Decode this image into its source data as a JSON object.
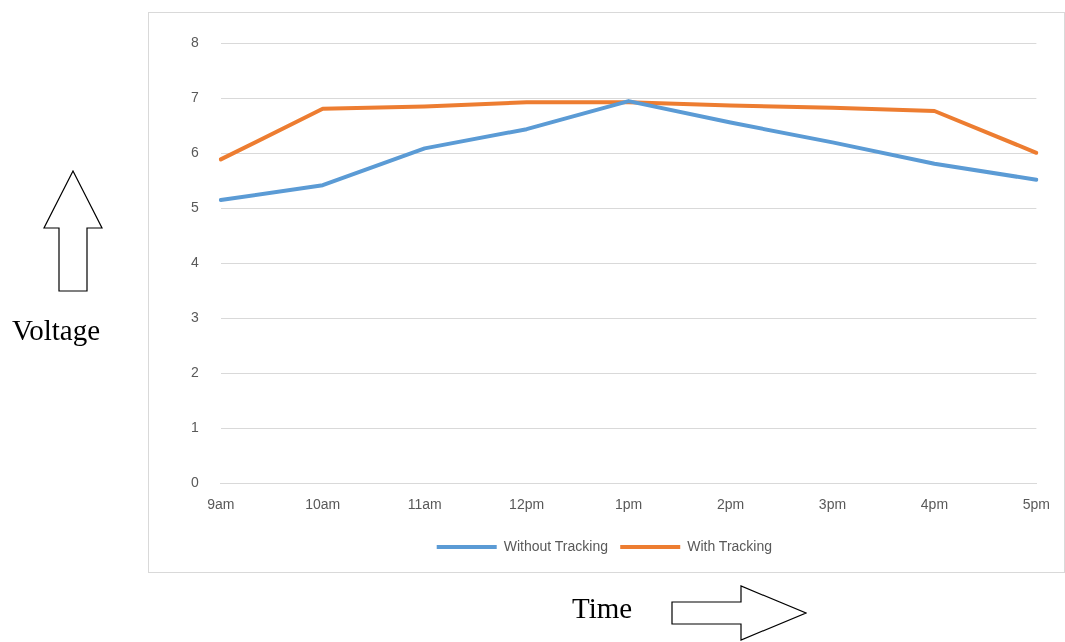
{
  "chart_data": {
    "type": "line",
    "xlabel": "Time",
    "ylabel": "Voltage",
    "categories": [
      "9am",
      "10am",
      "11am",
      "12pm",
      "1pm",
      "2pm",
      "3pm",
      "4pm",
      "5pm"
    ],
    "series": [
      {
        "name": "Without Tracking",
        "color": "#5b9bd5",
        "values": [
          5.15,
          5.42,
          6.09,
          6.44,
          6.95,
          6.56,
          6.2,
          5.81,
          5.52
        ]
      },
      {
        "name": "With Tracking",
        "color": "#ed7d31",
        "values": [
          5.89,
          6.81,
          6.85,
          6.93,
          6.93,
          6.87,
          6.83,
          6.77,
          6.01
        ]
      }
    ],
    "ylim": [
      0,
      8
    ],
    "yticks": [
      0,
      1,
      2,
      3,
      4,
      5,
      6,
      7,
      8
    ],
    "grid": "y",
    "legend": "bottom",
    "marker": "none",
    "line_style": "solid"
  }
}
